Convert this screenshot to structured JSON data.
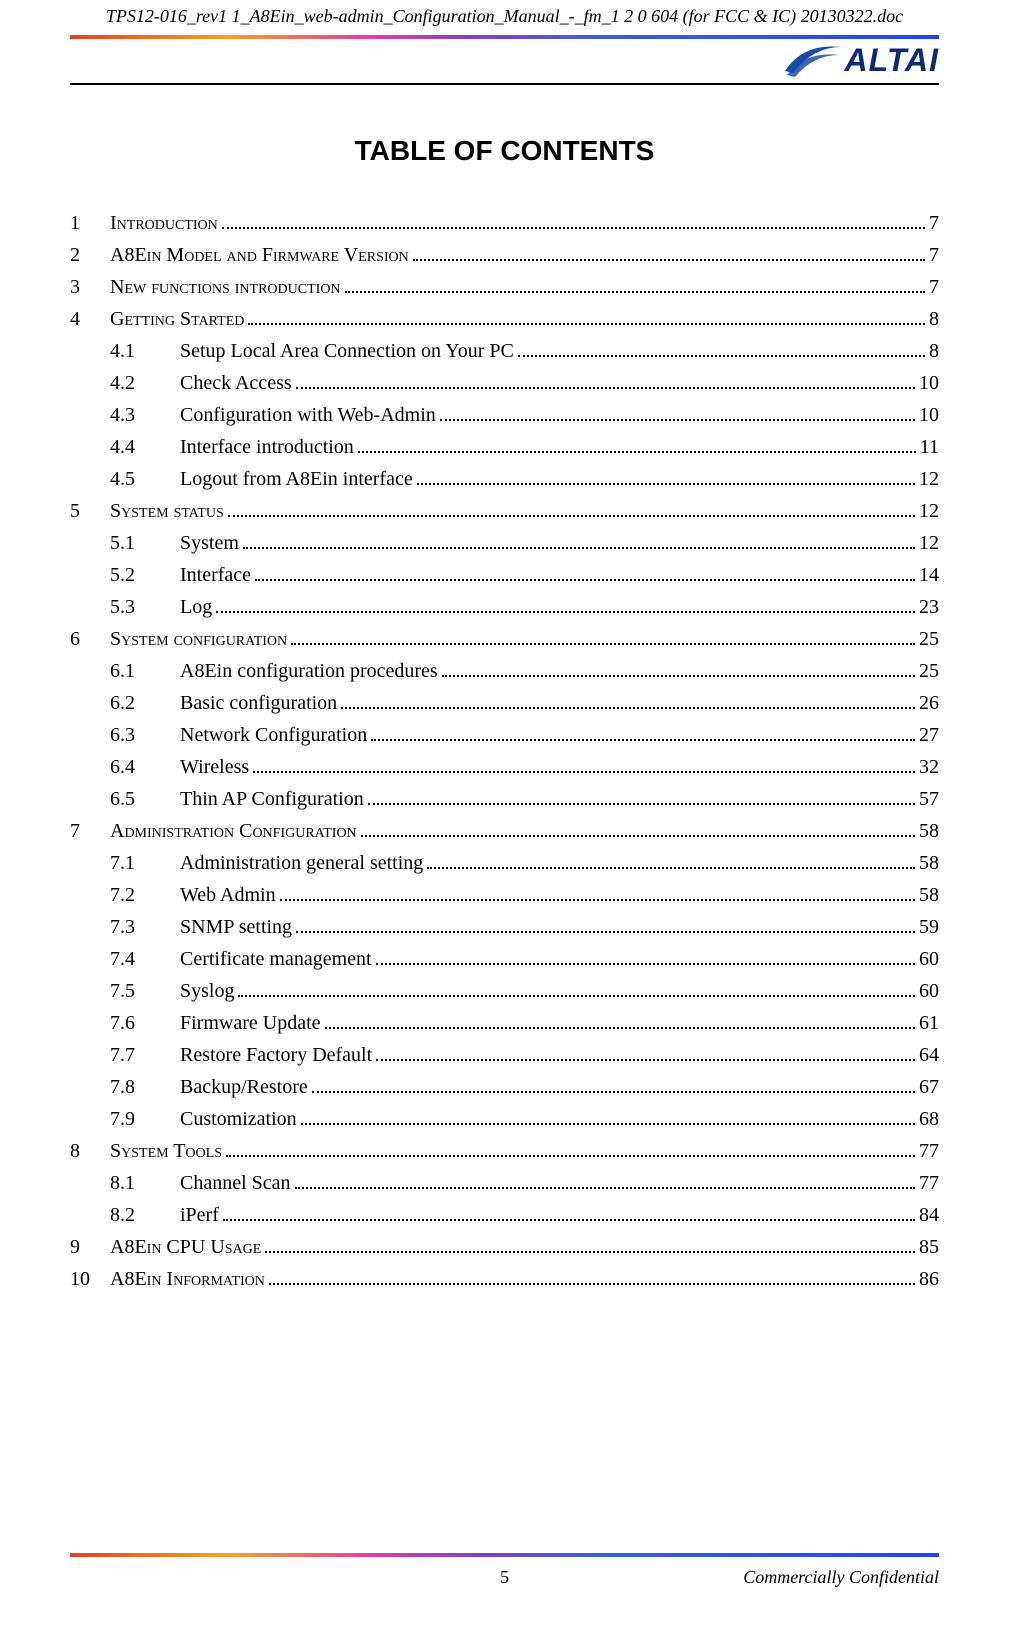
{
  "header": {
    "filename": "TPS12-016_rev1 1_A8Ein_web-admin_Configuration_Manual_-_fm_1 2 0 604 (for FCC & IC) 20130322.doc",
    "logo_text": "ALTAI",
    "logo_color": "#0a2a7a"
  },
  "title": "TABLE OF CONTENTS",
  "toc": [
    {
      "num": "1",
      "text": "Introduction",
      "page": "7",
      "level": 1,
      "smallcaps": true
    },
    {
      "num": "2",
      "text": "A8Ein Model and Firmware Version",
      "page": "7",
      "level": 1,
      "smallcaps": true
    },
    {
      "num": "3",
      "text": "New functions introduction",
      "page": "7",
      "level": 1,
      "smallcaps": true
    },
    {
      "num": "4",
      "text": "Getting Started",
      "page": "8",
      "level": 1,
      "smallcaps": true
    },
    {
      "num": "4.1",
      "text": "Setup Local Area Connection on Your PC",
      "page": "8",
      "level": 2
    },
    {
      "num": "4.2",
      "text": "Check Access",
      "page": "10",
      "level": 2
    },
    {
      "num": "4.3",
      "text": "Configuration with Web-Admin",
      "page": "10",
      "level": 2
    },
    {
      "num": "4.4",
      "text": "Interface introduction",
      "page": "11",
      "level": 2
    },
    {
      "num": "4.5",
      "text": "Logout from A8Ein interface",
      "page": "12",
      "level": 2
    },
    {
      "num": "5",
      "text": "System status",
      "page": "12",
      "level": 1,
      "smallcaps": true
    },
    {
      "num": "5.1",
      "text": "System",
      "page": "12",
      "level": 2
    },
    {
      "num": "5.2",
      "text": "Interface",
      "page": "14",
      "level": 2
    },
    {
      "num": "5.3",
      "text": "Log",
      "page": "23",
      "level": 2
    },
    {
      "num": "6",
      "text": "System configuration",
      "page": "25",
      "level": 1,
      "smallcaps": true
    },
    {
      "num": "6.1",
      "text": "A8Ein configuration procedures",
      "page": "25",
      "level": 2
    },
    {
      "num": "6.2",
      "text": "Basic configuration",
      "page": "26",
      "level": 2
    },
    {
      "num": "6.3",
      "text": "Network Configuration",
      "page": "27",
      "level": 2
    },
    {
      "num": "6.4",
      "text": "Wireless",
      "page": "32",
      "level": 2
    },
    {
      "num": "6.5",
      "text": "Thin AP Configuration",
      "page": "57",
      "level": 2
    },
    {
      "num": "7",
      "text": "Administration Configuration",
      "page": "58",
      "level": 1,
      "smallcaps": true
    },
    {
      "num": "7.1",
      "text": "Administration general setting",
      "page": "58",
      "level": 2
    },
    {
      "num": "7.2",
      "text": "Web Admin",
      "page": "58",
      "level": 2
    },
    {
      "num": "7.3",
      "text": "SNMP setting",
      "page": "59",
      "level": 2
    },
    {
      "num": "7.4",
      "text": "Certificate management",
      "page": "60",
      "level": 2
    },
    {
      "num": "7.5",
      "text": "Syslog",
      "page": "60",
      "level": 2
    },
    {
      "num": "7.6",
      "text": "Firmware Update",
      "page": "61",
      "level": 2
    },
    {
      "num": "7.7",
      "text": "Restore Factory Default",
      "page": "64",
      "level": 2
    },
    {
      "num": "7.8",
      "text": "Backup/Restore",
      "page": "67",
      "level": 2
    },
    {
      "num": "7.9",
      "text": "Customization",
      "page": "68",
      "level": 2
    },
    {
      "num": "8",
      "text": "System Tools",
      "page": "77",
      "level": 1,
      "smallcaps": true
    },
    {
      "num": "8.1",
      "text": "Channel Scan",
      "page": "77",
      "level": 2
    },
    {
      "num": "8.2",
      "text": "iPerf",
      "page": "84",
      "level": 2
    },
    {
      "num": "9",
      "text": "A8Ein CPU Usage",
      "page": "85",
      "level": 1,
      "smallcaps": true
    },
    {
      "num": "10",
      "text": "A8Ein Information",
      "page": "86",
      "level": 1,
      "smallcaps": true
    }
  ],
  "footer": {
    "page_number": "5",
    "confidential": "Commercially Confidential"
  },
  "colors": {
    "gradient": [
      "#e83e1f",
      "#f5a31f",
      "#e83ea0",
      "#8a3ec0",
      "#4060d8",
      "#2040ff"
    ],
    "text": "#000000",
    "background": "#ffffff"
  },
  "typography": {
    "body_font": "Times New Roman",
    "title_font": "Arial",
    "title_size_pt": 21,
    "body_size_pt": 15
  }
}
